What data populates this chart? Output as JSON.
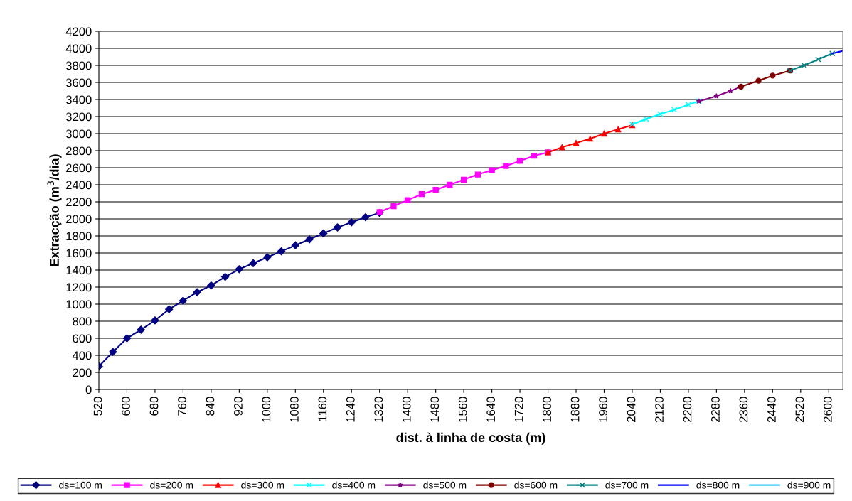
{
  "chart_data": {
    "type": "line",
    "xlabel": "dist. à linha de costa (m)",
    "ylabel": "Extracção (m$^{3}$/dia)",
    "xlim": [
      520,
      2640
    ],
    "xticks": [
      520,
      600,
      680,
      760,
      840,
      920,
      1000,
      1080,
      1160,
      1240,
      1320,
      1400,
      1480,
      1560,
      1640,
      1720,
      1800,
      1880,
      1960,
      2040,
      2120,
      2200,
      2280,
      2360,
      2440,
      2520,
      2600
    ],
    "ylim": [
      0,
      4200
    ],
    "yticks": [
      0,
      200,
      400,
      600,
      800,
      1000,
      1200,
      1400,
      1600,
      1800,
      2000,
      2200,
      2400,
      2600,
      2800,
      3000,
      3200,
      3400,
      3600,
      3800,
      4000,
      4200
    ],
    "grid": "y",
    "legend": "bottom",
    "series": [
      {
        "name": "ds=100 m",
        "color": "#000080",
        "marker": "diamond",
        "x": [
          520,
          560,
          600,
          640,
          680,
          720,
          760,
          800,
          840,
          880,
          920,
          960,
          1000,
          1040,
          1080,
          1120,
          1160,
          1200,
          1240,
          1280,
          1320
        ],
        "values": [
          270,
          440,
          600,
          700,
          810,
          940,
          1040,
          1140,
          1220,
          1320,
          1410,
          1480,
          1550,
          1620,
          1690,
          1760,
          1830,
          1900,
          1960,
          2020,
          2070
        ]
      },
      {
        "name": "ds=200 m",
        "color": "#ff00ff",
        "marker": "square",
        "x": [
          1320,
          1360,
          1400,
          1440,
          1480,
          1520,
          1560,
          1600,
          1640,
          1680,
          1720,
          1760,
          1800
        ],
        "values": [
          2080,
          2150,
          2220,
          2290,
          2340,
          2400,
          2460,
          2520,
          2570,
          2620,
          2680,
          2740,
          2780
        ]
      },
      {
        "name": "ds=300 m",
        "color": "#ff0000",
        "marker": "triangle",
        "x": [
          1800,
          1840,
          1880,
          1920,
          1960,
          2000,
          2040
        ],
        "values": [
          2780,
          2840,
          2890,
          2940,
          3000,
          3050,
          3100
        ]
      },
      {
        "name": "ds=400 m",
        "color": "#00ffff",
        "marker": "cross",
        "x": [
          2040,
          2080,
          2120,
          2160,
          2200,
          2230
        ],
        "values": [
          3110,
          3170,
          3230,
          3280,
          3340,
          3380
        ]
      },
      {
        "name": "ds=500 m",
        "color": "#800080",
        "marker": "star",
        "x": [
          2230,
          2280,
          2320,
          2350
        ],
        "values": [
          3380,
          3440,
          3500,
          3550
        ]
      },
      {
        "name": "ds=600 m",
        "color": "#800000",
        "marker": "circle",
        "x": [
          2350,
          2400,
          2440,
          2490
        ],
        "values": [
          3550,
          3620,
          3680,
          3740
        ]
      },
      {
        "name": "ds=700 m",
        "color": "#008080",
        "marker": "cross",
        "x": [
          2490,
          2530,
          2570,
          2610
        ],
        "values": [
          3740,
          3800,
          3870,
          3940
        ]
      },
      {
        "name": "ds=800 m",
        "color": "#0000ff",
        "marker": "none",
        "x": [
          2610,
          2640
        ],
        "values": [
          3940,
          3970
        ]
      },
      {
        "name": "ds=900 m",
        "color": "#33ccff",
        "marker": "none"
      }
    ]
  }
}
